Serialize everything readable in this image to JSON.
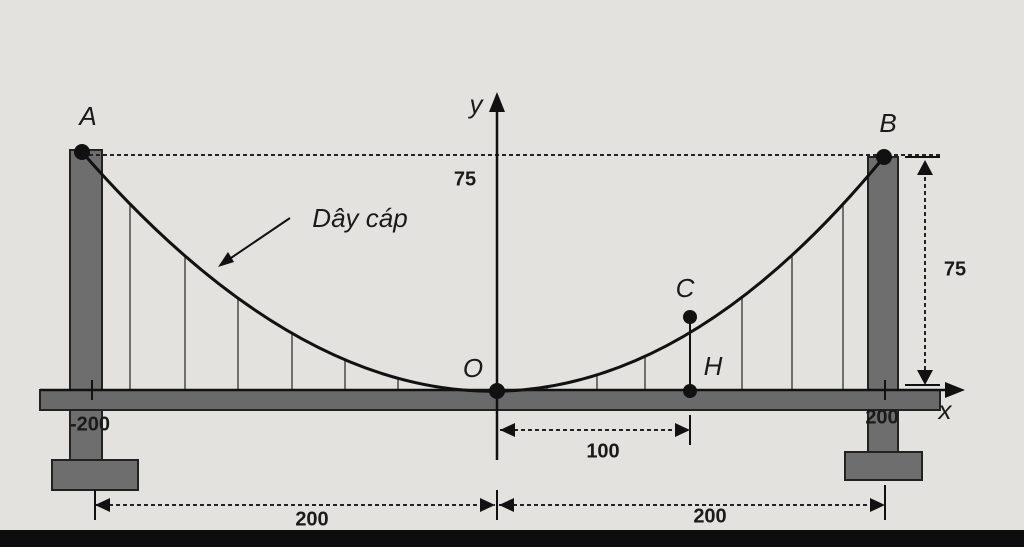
{
  "labels": {
    "A": "A",
    "B": "B",
    "y": "y",
    "x": "x",
    "y_75": "75",
    "cable": "Dây cáp",
    "C": "C",
    "O": "O",
    "H": "H",
    "x_min": "-200",
    "x_max": "200",
    "height_75": "75",
    "dist_100": "100",
    "dist_left": "200",
    "dist_right": "200"
  }
}
